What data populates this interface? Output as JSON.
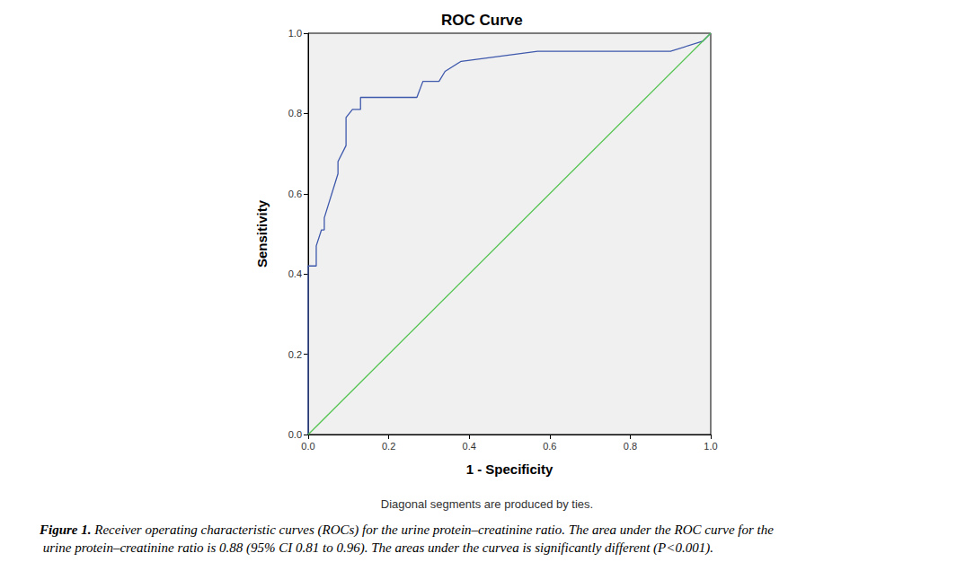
{
  "chart_data": {
    "type": "line",
    "title": "ROC Curve",
    "x_label": "1 - Specificity",
    "y_label": "Sensitivity",
    "series": [
      {
        "color": "#3e58ac",
        "line_style": "solid",
        "x": [
          0,
          0,
          0.02,
          0.02,
          0.033,
          0.04,
          0.04,
          0.074,
          0.074,
          0.094,
          0.094,
          0.11,
          0.13,
          0.13,
          0.27,
          0.285,
          0.325,
          0.34,
          0.38,
          0.57,
          0.9,
          0.98,
          1
        ],
        "values": [
          0,
          0.42,
          0.42,
          0.47,
          0.51,
          0.51,
          0.54,
          0.65,
          0.68,
          0.72,
          0.79,
          0.81,
          0.81,
          0.84,
          0.84,
          0.88,
          0.88,
          0.905,
          0.93,
          0.955,
          0.955,
          0.98,
          1
        ]
      },
      {
        "color": "#52c34f",
        "line_style": "solid",
        "x": [
          0,
          1
        ],
        "values": [
          0,
          1
        ]
      }
    ],
    "xlim": [
      0,
      1
    ],
    "ylim": [
      0,
      1
    ],
    "xticks": [
      {
        "value": 0,
        "label": "0.0"
      },
      0.2,
      0.4,
      0.6,
      0.8,
      {
        "value": 1,
        "label": "1.0"
      }
    ],
    "yticks": [
      {
        "value": 0,
        "label": "0.0"
      },
      0.2,
      0.4,
      0.6,
      0.8,
      {
        "value": 1,
        "label": "1.0"
      }
    ],
    "grid": false,
    "footnote": "Diagonal segments are produced by ties.",
    "caption": {
      "label": "Figure 1.",
      "text": "Receiver operating characteristic curves (ROCs) for the urine protein–creatinine ratio. The area under the ROC curve for the urine protein–creatinine ratio is 0.88 (95% CI 0.81 to 0.96). The areas under the curvea is significantly different (P<0.001)."
    }
  }
}
